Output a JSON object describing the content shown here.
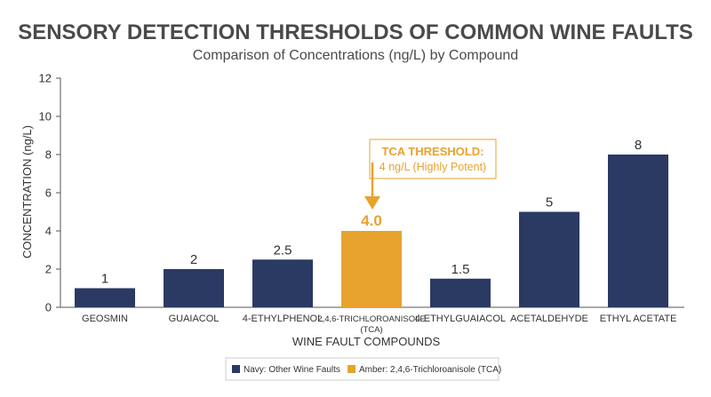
{
  "chart_data": {
    "type": "bar",
    "title": "SENSORY DETECTION THRESHOLDS OF COMMON WINE FAULTS",
    "subtitle": "Comparison of Concentrations (ng/L) by Compound",
    "xlabel": "WINE FAULT COMPOUNDS",
    "ylabel": "CONCENTRATION (ng/L)",
    "ylim": [
      0,
      12
    ],
    "yticks": [
      0,
      2,
      4,
      6,
      8,
      10,
      12
    ],
    "categories": [
      "GEOSMIN",
      "GUAIACOL",
      "4-ETHYLPHENOL",
      "2,4,6-TRICHLOROANISOLE",
      "4-ETHYLGUAIACOL",
      "ACETALDEHYDE",
      "ETHYL ACETATE"
    ],
    "category_sublabels": [
      "",
      "",
      "",
      "(TCA)",
      "",
      "",
      ""
    ],
    "values": [
      1,
      2,
      2.5,
      4,
      1.5,
      5,
      8
    ],
    "value_labels": [
      "1",
      "2",
      "2.5",
      "4.0",
      "1.5",
      "5",
      "8"
    ],
    "highlight_index": 3,
    "colors": {
      "default": "#2b3a63",
      "highlight": "#e8a22e"
    },
    "annotation": {
      "line1": "TCA THRESHOLD:",
      "line2": "4 ng/L (Highly Potent)"
    },
    "legend": {
      "position": "bottom",
      "items": [
        {
          "label": "Navy: Other Wine Faults",
          "color": "#2b3a63"
        },
        {
          "label": "Amber: 2,4,6-Trichloroanisole (TCA)",
          "color": "#e8a22e"
        }
      ]
    },
    "grid": false
  }
}
